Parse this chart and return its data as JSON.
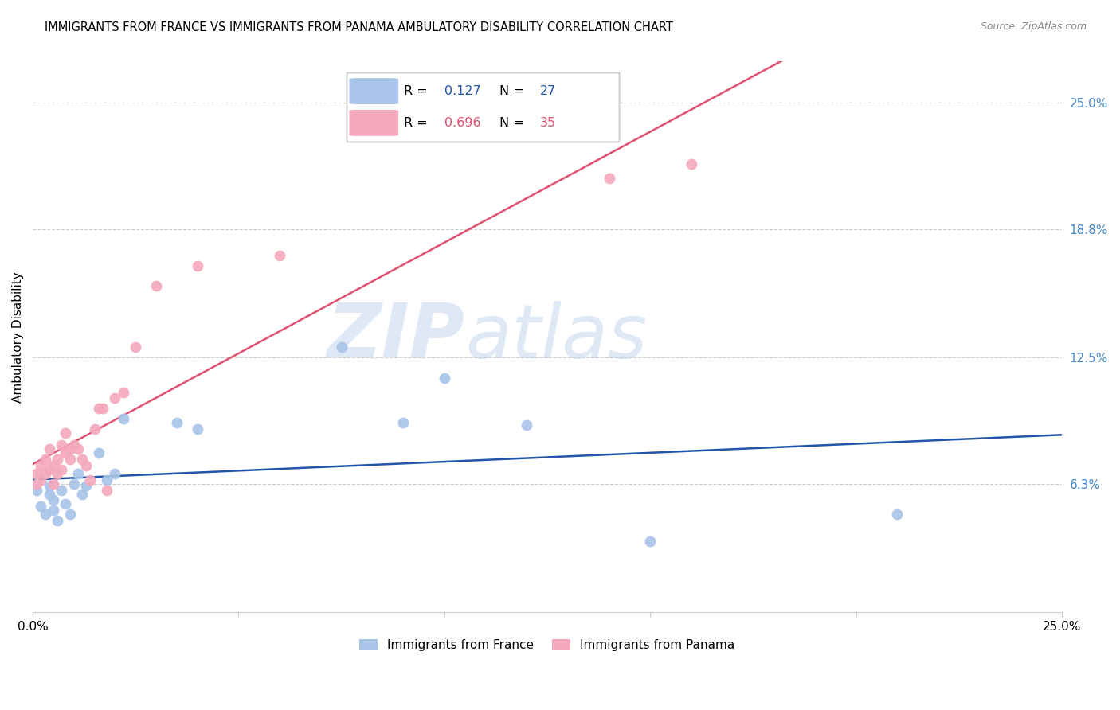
{
  "title": "IMMIGRANTS FROM FRANCE VS IMMIGRANTS FROM PANAMA AMBULATORY DISABILITY CORRELATION CHART",
  "source": "Source: ZipAtlas.com",
  "ylabel": "Ambulatory Disability",
  "xlim": [
    0,
    0.25
  ],
  "ylim": [
    0,
    0.27
  ],
  "ytick_labels_right": [
    "6.3%",
    "12.5%",
    "18.8%",
    "25.0%"
  ],
  "ytick_values_right": [
    0.063,
    0.125,
    0.188,
    0.25
  ],
  "france_color": "#a8c4e8",
  "panama_color": "#f4a8bc",
  "france_line_color": "#2255aa",
  "panama_line_color": "#e05070",
  "legend_R_france": "0.127",
  "legend_N_france": "27",
  "legend_R_panama": "0.696",
  "legend_N_panama": "35",
  "legend_label_france": "Immigrants from France",
  "legend_label_panama": "Immigrants from Panama",
  "watermark_zip": "ZIP",
  "watermark_atlas": "atlas",
  "france_x": [
    0.001,
    0.002,
    0.003,
    0.004,
    0.004,
    0.005,
    0.005,
    0.006,
    0.007,
    0.008,
    0.009,
    0.01,
    0.011,
    0.012,
    0.013,
    0.016,
    0.018,
    0.02,
    0.022,
    0.035,
    0.04,
    0.075,
    0.09,
    0.1,
    0.12,
    0.15,
    0.21
  ],
  "france_y": [
    0.06,
    0.052,
    0.048,
    0.058,
    0.062,
    0.05,
    0.055,
    0.045,
    0.06,
    0.053,
    0.048,
    0.063,
    0.068,
    0.058,
    0.062,
    0.078,
    0.065,
    0.068,
    0.095,
    0.093,
    0.09,
    0.13,
    0.093,
    0.115,
    0.092,
    0.035,
    0.048
  ],
  "panama_x": [
    0.001,
    0.001,
    0.002,
    0.002,
    0.003,
    0.003,
    0.004,
    0.004,
    0.005,
    0.005,
    0.006,
    0.006,
    0.007,
    0.007,
    0.008,
    0.008,
    0.009,
    0.009,
    0.01,
    0.011,
    0.012,
    0.013,
    0.014,
    0.015,
    0.016,
    0.017,
    0.018,
    0.02,
    0.022,
    0.025,
    0.03,
    0.04,
    0.06,
    0.14,
    0.16
  ],
  "panama_y": [
    0.063,
    0.068,
    0.065,
    0.072,
    0.068,
    0.075,
    0.07,
    0.08,
    0.063,
    0.072,
    0.068,
    0.075,
    0.07,
    0.082,
    0.078,
    0.088,
    0.075,
    0.08,
    0.082,
    0.08,
    0.075,
    0.072,
    0.065,
    0.09,
    0.1,
    0.1,
    0.06,
    0.105,
    0.108,
    0.13,
    0.16,
    0.17,
    0.175,
    0.213,
    0.22
  ]
}
